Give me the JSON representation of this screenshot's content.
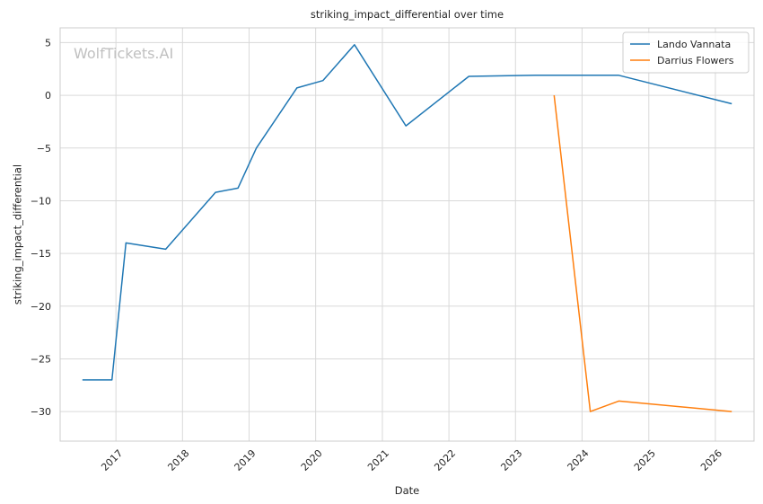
{
  "chart_data": {
    "type": "line",
    "title": "striking_impact_differential over time",
    "xlabel": "Date",
    "ylabel": "striking_impact_differential",
    "watermark": "WolfTickets.AI",
    "xlim": [
      "2016-03-01",
      "2026-08-01"
    ],
    "ylim": [
      -32.8,
      6.4
    ],
    "x_ticks": [
      {
        "date": "2017-01-01",
        "label": "2017"
      },
      {
        "date": "2018-01-01",
        "label": "2018"
      },
      {
        "date": "2019-01-01",
        "label": "2019"
      },
      {
        "date": "2020-01-01",
        "label": "2020"
      },
      {
        "date": "2021-01-01",
        "label": "2021"
      },
      {
        "date": "2022-01-01",
        "label": "2022"
      },
      {
        "date": "2023-01-01",
        "label": "2023"
      },
      {
        "date": "2024-01-01",
        "label": "2024"
      },
      {
        "date": "2025-01-01",
        "label": "2025"
      },
      {
        "date": "2026-01-01",
        "label": "2026"
      }
    ],
    "y_ticks": [
      {
        "value": 5,
        "label": "5"
      },
      {
        "value": 0,
        "label": "0"
      },
      {
        "value": -5,
        "label": "−5"
      },
      {
        "value": -10,
        "label": "−10"
      },
      {
        "value": -15,
        "label": "−15"
      },
      {
        "value": -20,
        "label": "−20"
      },
      {
        "value": -25,
        "label": "−25"
      },
      {
        "value": -30,
        "label": "−30"
      }
    ],
    "grid": true,
    "legend_position": "top-right",
    "series": [
      {
        "name": "Lando Vannata",
        "color": "#1f77b4",
        "points": [
          {
            "x": "2016-07-01",
            "y": -27.0
          },
          {
            "x": "2016-12-10",
            "y": -27.0
          },
          {
            "x": "2017-02-25",
            "y": -14.0
          },
          {
            "x": "2017-10-01",
            "y": -14.6
          },
          {
            "x": "2018-07-01",
            "y": -9.2
          },
          {
            "x": "2018-11-01",
            "y": -8.8
          },
          {
            "x": "2019-02-10",
            "y": -5.0
          },
          {
            "x": "2019-09-20",
            "y": 0.7
          },
          {
            "x": "2020-02-10",
            "y": 1.4
          },
          {
            "x": "2020-08-01",
            "y": 4.8
          },
          {
            "x": "2021-05-10",
            "y": -2.9
          },
          {
            "x": "2022-04-20",
            "y": 1.8
          },
          {
            "x": "2023-04-20",
            "y": 1.9
          },
          {
            "x": "2024-07-20",
            "y": 1.9
          },
          {
            "x": "2026-04-01",
            "y": -0.8
          }
        ]
      },
      {
        "name": "Darrius Flowers",
        "color": "#ff7f0e",
        "points": [
          {
            "x": "2023-08-01",
            "y": 0.0
          },
          {
            "x": "2024-02-15",
            "y": -30.0
          },
          {
            "x": "2024-07-20",
            "y": -29.0
          },
          {
            "x": "2026-04-01",
            "y": -30.0
          }
        ]
      }
    ]
  }
}
